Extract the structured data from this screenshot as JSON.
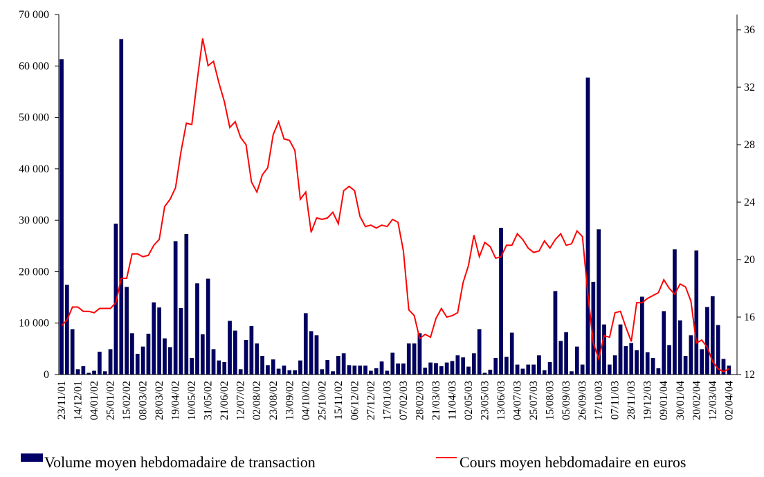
{
  "chart_data": {
    "type": "combo",
    "categories": [
      "23/11/01",
      null,
      null,
      "14/12/01",
      null,
      null,
      "04/01/02",
      null,
      null,
      "25/01/02",
      null,
      null,
      "15/02/02",
      null,
      null,
      "08/03/02",
      null,
      null,
      "28/03/02",
      null,
      null,
      "19/04/02",
      null,
      null,
      "10/05/02",
      null,
      null,
      "31/05/02",
      null,
      null,
      "21/06/02",
      null,
      null,
      "12/07/02",
      null,
      null,
      "02/08/02",
      null,
      null,
      "23/08/02",
      null,
      null,
      "13/09/02",
      null,
      null,
      "04/10/02",
      null,
      null,
      "25/10/02",
      null,
      null,
      "15/11/02",
      null,
      null,
      "06/12/02",
      null,
      null,
      "27/12/02",
      null,
      null,
      "17/01/03",
      null,
      null,
      "07/02/03",
      null,
      null,
      "28/02/03",
      null,
      null,
      "21/03/03",
      null,
      null,
      "11/04/03",
      null,
      null,
      "02/05/03",
      null,
      null,
      "23/05/03",
      null,
      null,
      "13/06/03",
      null,
      null,
      "04/07/03",
      null,
      null,
      "25/07/03",
      null,
      null,
      "15/08/03",
      null,
      null,
      "05/09/03",
      null,
      null,
      "26/09/03",
      null,
      null,
      "17/10/03",
      null,
      null,
      "07/11/03",
      null,
      null,
      "28/11/03",
      null,
      null,
      "19/12/03",
      null,
      null,
      "09/01/04",
      null,
      null,
      "30/01/04",
      null,
      null,
      "20/02/04",
      null,
      null,
      "12/03/04",
      null,
      null,
      "02/04/04"
    ],
    "series": [
      {
        "name": "Volume moyen hebdomadaire de transaction",
        "type": "bar",
        "color": "#000066",
        "values": [
          61300,
          17400,
          8800,
          1000,
          1600,
          300,
          700,
          4400,
          600,
          4900,
          29300,
          65200,
          17000,
          8000,
          4000,
          5400,
          7900,
          14000,
          13000,
          7000,
          5300,
          25900,
          12900,
          27300,
          3200,
          17700,
          7800,
          18600,
          4900,
          2700,
          2400,
          10400,
          8500,
          1000,
          6700,
          9400,
          6000,
          3600,
          1800,
          2900,
          1100,
          1700,
          800,
          800,
          2700,
          11900,
          8400,
          7600,
          1000,
          2800,
          600,
          3600,
          4100,
          1800,
          1700,
          1700,
          1700,
          700,
          1200,
          2500,
          700,
          4200,
          2100,
          2100,
          6000,
          6000,
          8000,
          1300,
          2300,
          2200,
          1600,
          2300,
          2600,
          3700,
          3300,
          1500,
          4100,
          8800,
          300,
          900,
          3200,
          28500,
          3400,
          8100,
          1900,
          1100,
          1900,
          1900,
          3700,
          800,
          2400,
          16200,
          6500,
          8200,
          600,
          5400,
          1900,
          57700,
          18000,
          28200,
          9700,
          1900,
          3700,
          9700,
          5500,
          6100,
          4700,
          15100,
          4300,
          3200,
          1200,
          12300,
          5700,
          24300,
          10500,
          3600,
          7600,
          24100,
          4900,
          13100,
          15200,
          9600,
          3000,
          1700
        ]
      },
      {
        "name": "Cours moyen hebdomadaire en euros",
        "type": "line",
        "axis": "y2",
        "color": "#ff0000",
        "values": [
          15.4,
          15.8,
          16.7,
          16.7,
          16.4,
          16.4,
          16.3,
          16.6,
          16.6,
          16.6,
          17,
          18.7,
          18.7,
          20.4,
          20.4,
          20.2,
          20.3,
          21,
          21.4,
          23.7,
          24.2,
          25,
          27.5,
          29.5,
          29.4,
          32.5,
          35.4,
          33.5,
          33.8,
          32.3,
          31,
          29.2,
          29.6,
          28.5,
          28,
          25.4,
          24.7,
          25.9,
          26.4,
          28.7,
          29.6,
          28.4,
          28.3,
          27.6,
          24.2,
          24.7,
          21.9,
          22.9,
          22.8,
          22.9,
          23.3,
          22.5,
          24.8,
          25.1,
          24.8,
          23,
          22.3,
          22.4,
          22.2,
          22.4,
          22.3,
          22.8,
          22.6,
          20.6,
          16.5,
          16.1,
          14.5,
          14.8,
          14.6,
          15.9,
          16.6,
          16,
          16.1,
          16.3,
          18.4,
          19.6,
          21.7,
          20.2,
          21.2,
          20.9,
          20.1,
          20.2,
          21,
          21,
          21.8,
          21.4,
          20.8,
          20.5,
          20.6,
          21.3,
          20.8,
          21.4,
          21.8,
          21,
          21.1,
          22,
          21.6,
          17.6,
          14.2,
          13.1,
          14.7,
          14.6,
          16.3,
          16.4,
          15.3,
          14.3,
          17,
          17,
          17.3,
          17.5,
          17.7,
          18.6,
          18,
          17.6,
          18.3,
          18.1,
          17.1,
          14.2,
          14.4,
          13.9,
          12.9,
          12.4,
          12.2,
          12.4
        ]
      }
    ],
    "ylim": [
      0,
      70000
    ],
    "yticks": [
      0,
      {
        "value": 10000,
        "label": "10 000"
      },
      {
        "value": 20000,
        "label": "20 000"
      },
      {
        "value": 30000,
        "label": "30 000"
      },
      {
        "value": 40000,
        "label": "40 000"
      },
      {
        "value": 50000,
        "label": "50 000"
      },
      {
        "value": 60000,
        "label": "60 000"
      },
      {
        "value": 70000,
        "label": "70 000"
      }
    ],
    "y2lim": [
      12,
      37.06
    ],
    "y2ticks": [
      12,
      16,
      20,
      24,
      28,
      32,
      36
    ],
    "legend": "bottom"
  }
}
